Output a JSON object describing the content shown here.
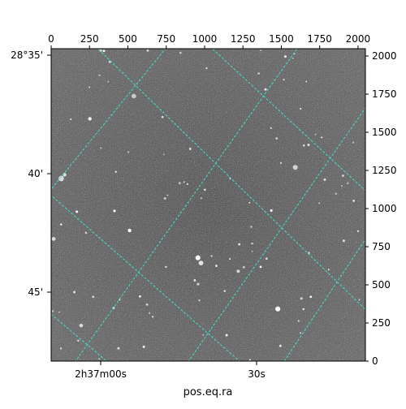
{
  "chart_data": {
    "type": "image",
    "xlabel": "pos.eq.ra",
    "ylabel": "",
    "pixel_axes": {
      "x_ticks": [
        "0",
        "250",
        "500",
        "750",
        "1000",
        "1250",
        "1500",
        "1750",
        "2000"
      ],
      "y_ticks": [
        "0",
        "250",
        "500",
        "750",
        "1000",
        "1250",
        "1500",
        "1750",
        "2000"
      ],
      "xlim": [
        0,
        2048
      ],
      "ylim": [
        0,
        2048
      ]
    },
    "world_axes": {
      "ra_ticks": [
        "2h37m00s",
        "30s"
      ],
      "dec_ticks": [
        "28°35'",
        "40'",
        "45'"
      ]
    },
    "grid": true,
    "grid_color": "#40e0d0",
    "background_image": "grayscale star field",
    "colors": {
      "axis": "#000000",
      "grid": "#40e0d0"
    }
  }
}
